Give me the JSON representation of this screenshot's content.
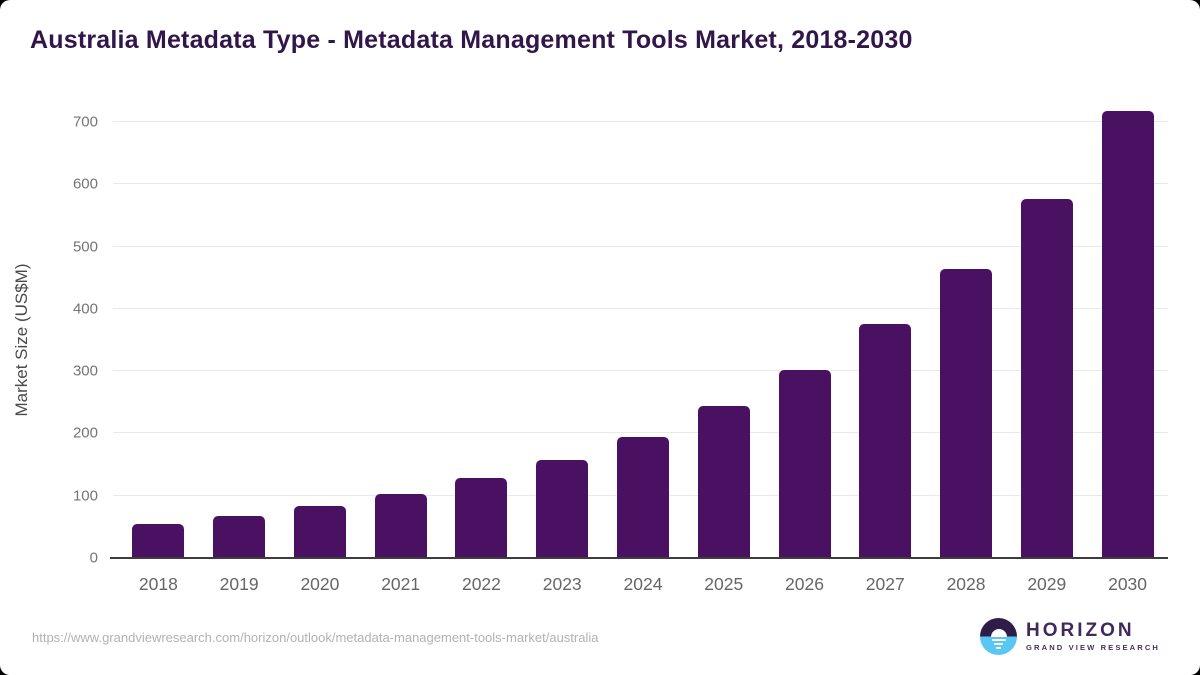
{
  "title": "Australia Metadata Type - Metadata Management Tools Market, 2018-2030",
  "chart_data": {
    "type": "bar",
    "categories": [
      "2018",
      "2019",
      "2020",
      "2021",
      "2022",
      "2023",
      "2024",
      "2025",
      "2026",
      "2027",
      "2028",
      "2029",
      "2030"
    ],
    "values": [
      54,
      67,
      84,
      102,
      128,
      158,
      195,
      244,
      302,
      376,
      464,
      577,
      717
    ],
    "title": "Australia Metadata Type - Metadata Management Tools Market, 2018-2030",
    "xlabel": "",
    "ylabel": "Market Size (US$M)",
    "ylim": [
      0,
      700
    ],
    "yticks": [
      0,
      100,
      200,
      300,
      400,
      500,
      600,
      700
    ],
    "grid": true,
    "legend": "none",
    "bar_color": "#4a1163"
  },
  "colors": {
    "title_text": "#31164a",
    "bar": "#4a1163",
    "gridline": "#e9e9e9",
    "axis_line": "#3d3d3d",
    "tick_text": "#757575",
    "axis_title_text": "#4a4a4a",
    "footer_text": "#b2b2b2",
    "logo_purple": "#3e2b5c",
    "logo_blue": "#58c7f3"
  },
  "footer": {
    "source_url": "https://www.grandviewresearch.com/horizon/outlook/metadata-management-tools-market/australia",
    "logo_name": "HORIZON",
    "logo_subtitle": "GRAND VIEW RESEARCH"
  }
}
